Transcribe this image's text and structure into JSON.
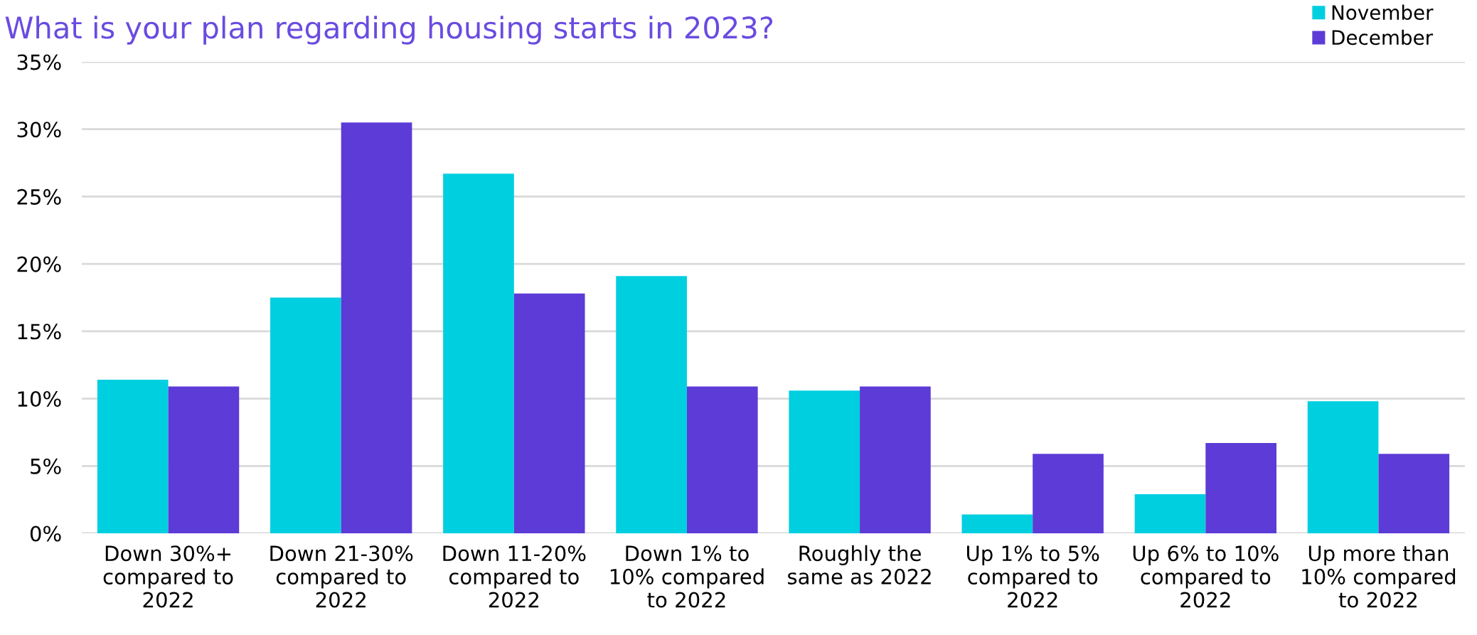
{
  "chart_data": {
    "type": "bar",
    "title": "What is your plan regarding housing starts in 2023?",
    "categories": [
      "Down 30%+\ncompared to\n2022",
      "Down 21-30%\ncompared to\n2022",
      "Down 11-20%\ncompared to\n2022",
      "Down 1% to\n10% compared\nto 2022",
      "Roughly the\nsame as 2022",
      "Up 1% to 5%\ncompared to\n2022",
      "Up 6% to 10%\ncompared to\n2022",
      "Up more than\n10% compared\nto 2022"
    ],
    "series": [
      {
        "name": "November",
        "color": "#00cfe0",
        "values": [
          11.4,
          17.5,
          26.7,
          19.1,
          10.6,
          1.4,
          2.9,
          9.8
        ]
      },
      {
        "name": "December",
        "color": "#5c3bd6",
        "values": [
          10.9,
          30.5,
          17.8,
          10.9,
          10.9,
          5.9,
          6.7,
          5.9
        ]
      }
    ],
    "ylim": [
      0,
      35
    ],
    "yticks": [
      {
        "value": 0,
        "label": "0%"
      },
      {
        "value": 5,
        "label": "5%"
      },
      {
        "value": 10,
        "label": "10%"
      },
      {
        "value": 15,
        "label": "15%"
      },
      {
        "value": 20,
        "label": "20%"
      },
      {
        "value": 25,
        "label": "25%"
      },
      {
        "value": 30,
        "label": "30%"
      },
      {
        "value": 35,
        "label": "35%"
      }
    ],
    "grid": "y",
    "legend": "top right"
  }
}
